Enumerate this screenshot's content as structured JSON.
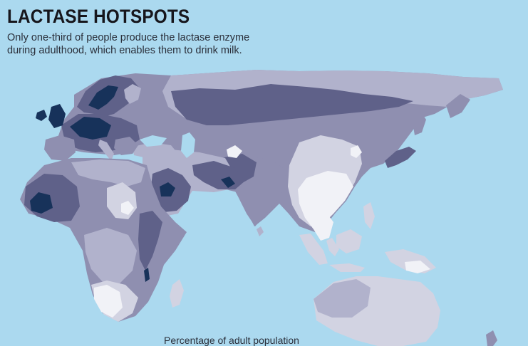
{
  "header": {
    "title": "LACTASE HOTSPOTS",
    "subtitle_line1": "Only one-third of people produce the lactase enzyme",
    "subtitle_line2": "during adulthood, which enables them to drink milk."
  },
  "legend": {
    "caption": "Percentage of adult population"
  },
  "colors": {
    "ocean": "#abd9ef",
    "level_lowest": "#f1f2f7",
    "level_low": "#d2d3e2",
    "level_mid_low": "#b1b2cc",
    "level_mid": "#8f8fb0",
    "level_high": "#5f6189",
    "level_highest": "#17325a"
  }
}
